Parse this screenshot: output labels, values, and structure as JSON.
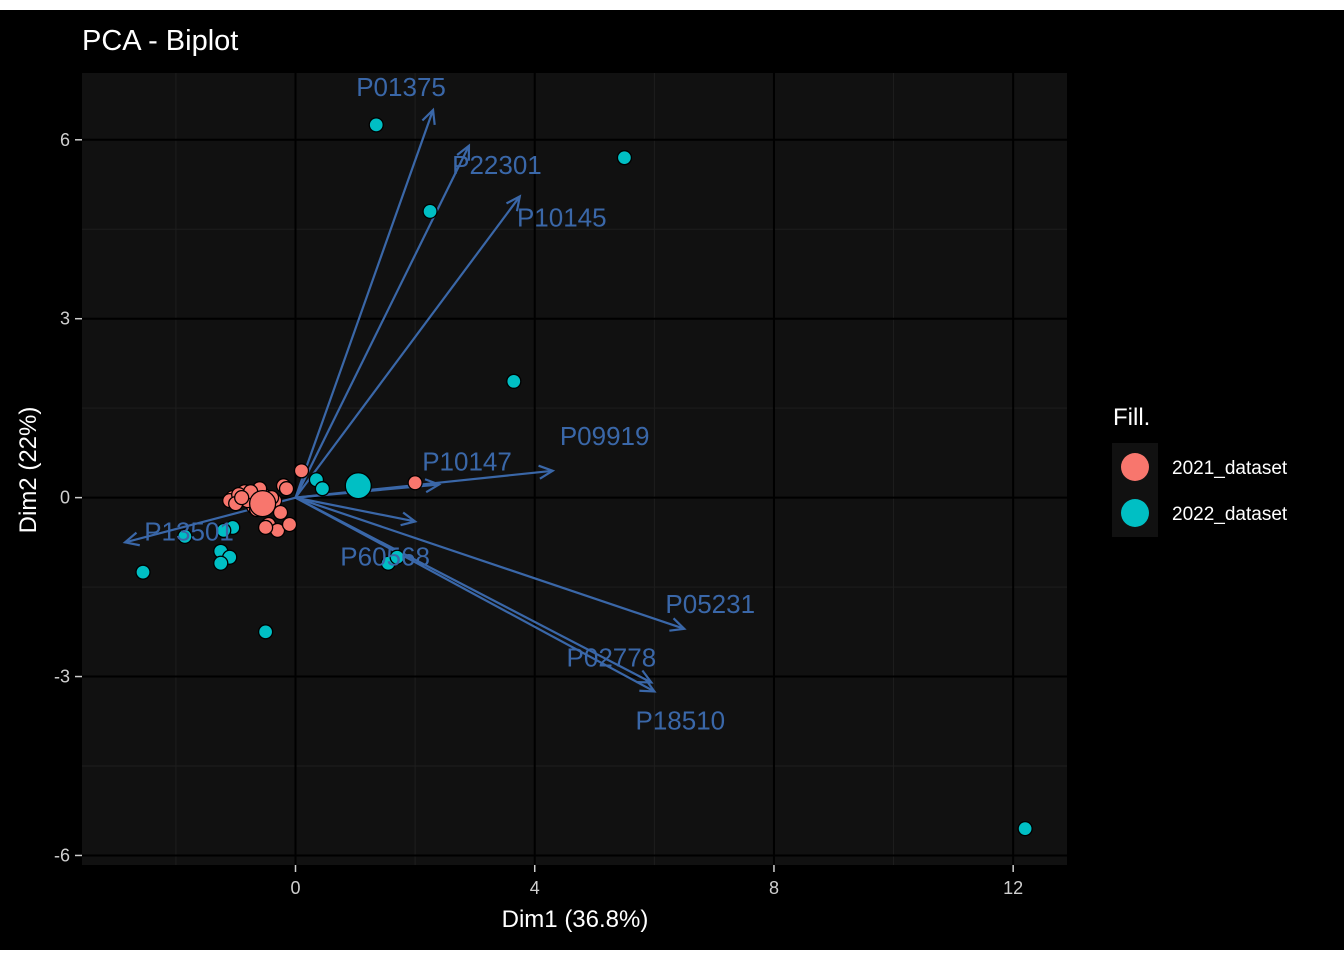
{
  "chart_data": {
    "type": "scatter",
    "title": "PCA - Biplot",
    "xlabel": "Dim1 (36.8%)",
    "ylabel": "Dim2 (22%)",
    "xlim": [
      -3.57,
      12.9
    ],
    "ylim": [
      -6.16,
      7.12
    ],
    "x_ticks": [
      0,
      4,
      8,
      12
    ],
    "y_ticks": [
      -6,
      -3,
      0,
      3,
      6
    ],
    "grid": true,
    "legend": {
      "title": "Fill.",
      "position": "right"
    },
    "colors": {
      "panel": "#111111",
      "background": "#000000",
      "grid_major": "#000000",
      "grid_minor": "#1e1e1e",
      "arrow": "#3a67a8",
      "arrow_label": "#3a67a8"
    },
    "series": [
      {
        "name": "2021_dataset",
        "color": "#f8766d",
        "x": [
          -1.05,
          -0.85,
          -1.1,
          -0.95,
          -0.7,
          -0.55,
          -0.6,
          -0.8,
          -1.0,
          -0.45,
          -0.3,
          -0.5,
          -0.35,
          -0.2,
          -0.25,
          -0.4,
          -0.1,
          -0.65,
          -0.75,
          0.1,
          2.0,
          -0.9,
          -0.15
        ],
        "y": [
          0.0,
          0.1,
          -0.05,
          0.05,
          -0.15,
          0.05,
          0.15,
          -0.05,
          -0.1,
          -0.45,
          -0.55,
          -0.5,
          -0.05,
          0.2,
          -0.25,
          0.0,
          -0.45,
          -0.2,
          0.1,
          0.45,
          0.25,
          0.0,
          0.15
        ],
        "centroid": [
          -0.55,
          -0.1
        ]
      },
      {
        "name": "2022_dataset",
        "color": "#00bfc4",
        "x": [
          1.35,
          5.5,
          2.25,
          3.65,
          0.35,
          0.45,
          -1.05,
          -1.2,
          -1.85,
          -1.25,
          -1.1,
          -1.25,
          -2.55,
          -0.5,
          1.55,
          1.7,
          12.2
        ],
        "y": [
          6.25,
          5.7,
          4.8,
          1.95,
          0.3,
          0.15,
          -0.5,
          -0.55,
          -0.65,
          -0.9,
          -1.0,
          -1.1,
          -1.25,
          -2.25,
          -1.1,
          -1.0,
          -5.55
        ],
        "centroid": [
          1.05,
          0.2
        ]
      }
    ],
    "variables": [
      {
        "name": "P01375",
        "x": 2.3,
        "y": 6.5
      },
      {
        "name": "P22301",
        "x": 2.9,
        "y": 5.9
      },
      {
        "name": "P10145",
        "x": 3.75,
        "y": 5.05
      },
      {
        "name": "P10147",
        "x": 2.4,
        "y": 0.22
      },
      {
        "name": "P09919",
        "x": 4.3,
        "y": 0.45
      },
      {
        "name": "P13501",
        "x": -2.85,
        "y": -0.75
      },
      {
        "name": "P60568",
        "x": 2.0,
        "y": -0.4
      },
      {
        "name": "P05231",
        "x": 6.5,
        "y": -2.2
      },
      {
        "name": "P02778",
        "x": 5.95,
        "y": -3.1
      },
      {
        "name": "P18510",
        "x": 6.0,
        "y": -3.25
      }
    ]
  }
}
